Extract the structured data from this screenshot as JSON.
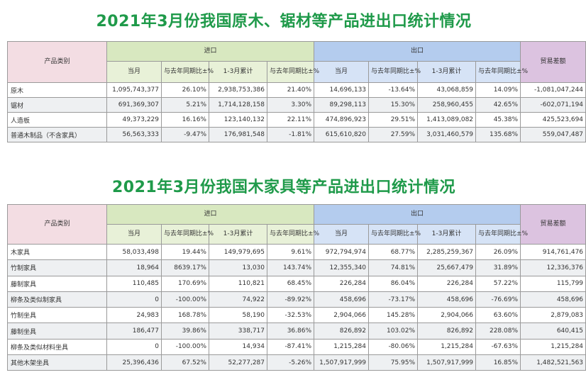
{
  "table1": {
    "title": "2021年3月份我国原木、锯材等产品进出口统计情况",
    "headers": {
      "category": "产品类别",
      "import": "进口",
      "export": "出口",
      "balance": "贸易差额",
      "sub": [
        "当月",
        "与去年同期比±%",
        "1-3月累计",
        "与去年同期比±%",
        "当月",
        "与去年同期比±%",
        "1-3月累计",
        "与去年同期比±%"
      ]
    },
    "rows": [
      {
        "name": "原木",
        "cells": [
          "1,095,743,377",
          "26.10%",
          "2,938,753,386",
          "21.40%",
          "14,696,133",
          "-13.64%",
          "43,068,859",
          "14.09%",
          "-1,081,047,244"
        ]
      },
      {
        "name": "锯材",
        "cells": [
          "691,369,307",
          "5.21%",
          "1,714,128,158",
          "3.30%",
          "89,298,113",
          "15.30%",
          "258,960,455",
          "42.65%",
          "-602,071,194"
        ]
      },
      {
        "name": "人造板",
        "cells": [
          "49,373,229",
          "16.16%",
          "123,140,132",
          "22.11%",
          "474,896,923",
          "29.51%",
          "1,413,089,082",
          "45.38%",
          "425,523,694"
        ]
      },
      {
        "name": "普通木制品（不含家具）",
        "cells": [
          "56,563,333",
          "-9.47%",
          "176,981,548",
          "-1.81%",
          "615,610,820",
          "27.59%",
          "3,031,460,579",
          "135.68%",
          "559,047,487"
        ]
      }
    ]
  },
  "table2": {
    "title": "2021年3月份我国木家具等产品进出口统计情况",
    "headers": {
      "category": "产品类别",
      "import": "进口",
      "export": "出口",
      "balance": "贸易差额",
      "sub": [
        "当月",
        "与去年同期比±%",
        "1-3月累计",
        "与去年同期比±%",
        "当月",
        "与去年同期比±%",
        "1-3月累计",
        "与去年同期比±%"
      ]
    },
    "rows": [
      {
        "name": "木家具",
        "cells": [
          "58,033,498",
          "19.44%",
          "149,979,695",
          "9.61%",
          "972,794,974",
          "68.77%",
          "2,285,259,367",
          "26.09%",
          "914,761,476"
        ]
      },
      {
        "name": "竹制家具",
        "cells": [
          "18,964",
          "8639.17%",
          "13,030",
          "143.74%",
          "12,355,340",
          "74.81%",
          "25,667,479",
          "31.89%",
          "12,336,376"
        ]
      },
      {
        "name": "藤制家具",
        "cells": [
          "110,485",
          "170.69%",
          "110,821",
          "68.45%",
          "226,284",
          "86.04%",
          "226,284",
          "57.22%",
          "115,799"
        ]
      },
      {
        "name": "柳条及类似制家具",
        "cells": [
          "0",
          "-100.00%",
          "74,922",
          "-89.92%",
          "458,696",
          "-73.17%",
          "458,696",
          "-76.69%",
          "458,696"
        ]
      },
      {
        "name": "竹制坐具",
        "cells": [
          "24,983",
          "168.78%",
          "58,190",
          "-32.53%",
          "2,904,066",
          "145.28%",
          "2,904,066",
          "63.60%",
          "2,879,083"
        ]
      },
      {
        "name": "藤制坐具",
        "cells": [
          "186,477",
          "39.86%",
          "338,717",
          "36.86%",
          "826,892",
          "103.02%",
          "826,892",
          "228.08%",
          "640,415"
        ]
      },
      {
        "name": "柳条及类似材料坐具",
        "cells": [
          "0",
          "-100.00%",
          "14,934",
          "-87.41%",
          "1,215,284",
          "-80.06%",
          "1,215,284",
          "-67.63%",
          "1,215,284"
        ]
      },
      {
        "name": "其他木架坐具",
        "cells": [
          "25,396,436",
          "67.52%",
          "52,277,287",
          "-5.26%",
          "1,507,917,999",
          "75.95%",
          "1,507,917,999",
          "16.85%",
          "1,482,521,563"
        ]
      }
    ]
  }
}
